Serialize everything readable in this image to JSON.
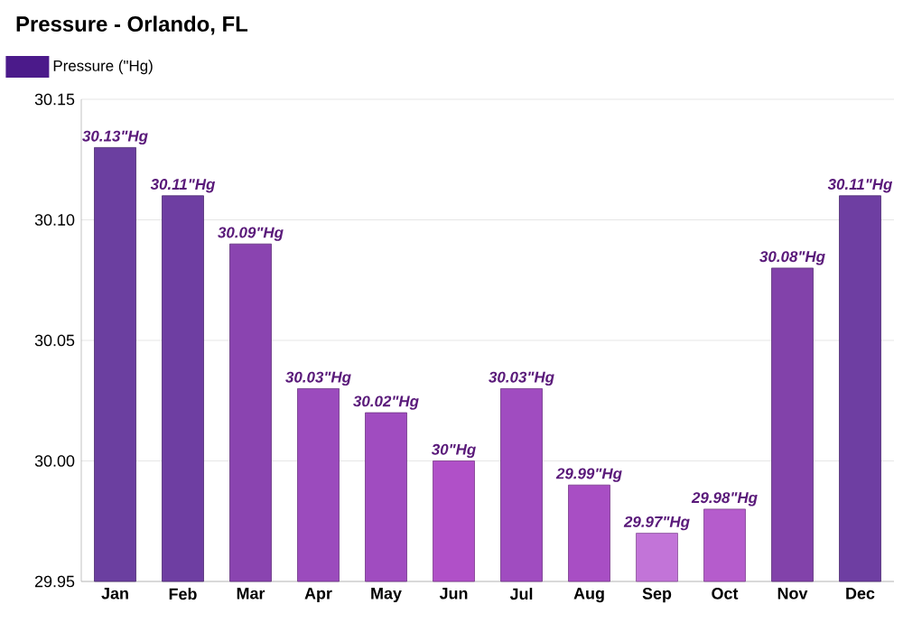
{
  "chart_data": {
    "type": "bar",
    "title": "Pressure - Orlando, FL",
    "categories": [
      "Jan",
      "Feb",
      "Mar",
      "Apr",
      "May",
      "Jun",
      "Jul",
      "Aug",
      "Sep",
      "Oct",
      "Nov",
      "Dec"
    ],
    "series": [
      {
        "name": "Pressure (\"Hg)",
        "color": "#4b1a8a",
        "values": [
          30.13,
          30.11,
          30.09,
          30.03,
          30.02,
          30.0,
          30.03,
          29.99,
          29.97,
          29.98,
          30.08,
          30.11
        ],
        "colors": [
          "#6b3fa0",
          "#6e3ea2",
          "#8a44b0",
          "#9b4bbd",
          "#a04cc0",
          "#b050c8",
          "#a04cc0",
          "#a84ec4",
          "#c274d8",
          "#b55ccc",
          "#8242aa",
          "#6e3ea2"
        ],
        "value_labels": [
          "30.13\"Hg",
          "30.11\"Hg",
          "30.09\"Hg",
          "30.03\"Hg",
          "30.02\"Hg",
          "30\"Hg",
          "30.03\"Hg",
          "29.99\"Hg",
          "29.97\"Hg",
          "29.98\"Hg",
          "30.08\"Hg",
          "30.11\"Hg"
        ]
      }
    ],
    "ylim": [
      29.95,
      30.15
    ],
    "yticks": [
      {
        "value": 29.95,
        "label": "29.95"
      },
      {
        "value": 30.0,
        "label": "30.00"
      },
      {
        "value": 30.05,
        "label": "30.05"
      },
      {
        "value": 30.1,
        "label": "30.10"
      },
      {
        "value": 30.15,
        "label": "30.15"
      }
    ],
    "grid": "y",
    "legend": "top left"
  }
}
